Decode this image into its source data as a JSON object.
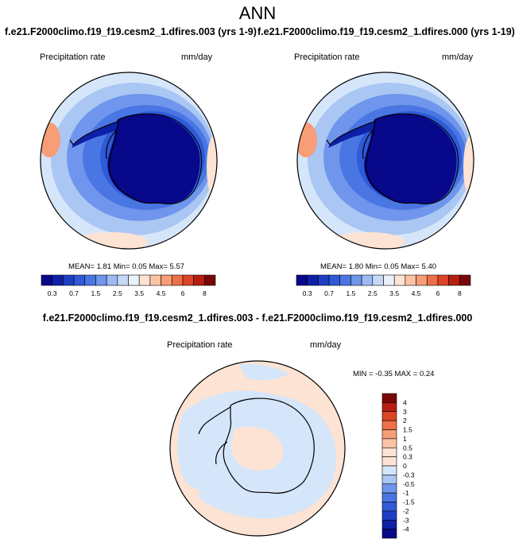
{
  "main_title": "ANN",
  "panels": {
    "left": {
      "case_title": "f.e21.F2000climo.f19_f19.cesm2_1.dfires.003 (yrs 1-9)",
      "variable": "Precipitation rate",
      "units": "mm/day",
      "stats_text": "MEAN=  1.81  Min=  0.05  Max=  5.57"
    },
    "right": {
      "case_title": "f.e21.F2000climo.f19_f19.cesm2_1.dfires.000 (yrs 1-19)",
      "variable": "Precipitation rate",
      "units": "mm/day",
      "stats_text": "MEAN=  1.80  Min=  0.05  Max=  5.40"
    },
    "diff": {
      "case_title": "f.e21.F2000climo.f19_f19.cesm2_1.dfires.003 - f.e21.F2000climo.f19_f19.cesm2_1.dfires.000",
      "variable": "Precipitation rate",
      "units": "mm/day",
      "stats_text": "MIN =  -0.35 MAX =   0.24"
    }
  },
  "chart_data": [
    {
      "type": "heatmap",
      "projection": "south polar stereographic",
      "title": "f.e21.F2000climo.f19_f19.cesm2_1.dfires.003 (yrs 1-9)",
      "variable": "Precipitation rate",
      "units": "mm/day",
      "mean": 1.81,
      "min": 0.05,
      "max": 5.57,
      "colorbar": {
        "orientation": "horizontal",
        "levels": [
          "0.3",
          "0.5",
          "0.7",
          "1",
          "1.5",
          "2",
          "2.5",
          "3",
          "3.5",
          "4",
          "4.5",
          "5",
          "6",
          "7",
          "8"
        ],
        "tick_labels": [
          "0.3",
          "0.7",
          "1.5",
          "2.5",
          "3.5",
          "4.5",
          "6",
          "8"
        ],
        "colors": [
          "#08088a",
          "#0e1fa8",
          "#1f3ec6",
          "#2f5ad8",
          "#4a76e3",
          "#6f96ec",
          "#9dbaf2",
          "#c7d9f7",
          "#eaf1fc",
          "#fde3d3",
          "#fbc3a4",
          "#f79d77",
          "#ef6f4b",
          "#dc4526",
          "#b51e10",
          "#7a0707"
        ]
      }
    },
    {
      "type": "heatmap",
      "projection": "south polar stereographic",
      "title": "f.e21.F2000climo.f19_f19.cesm2_1.dfires.000 (yrs 1-19)",
      "variable": "Precipitation rate",
      "units": "mm/day",
      "mean": 1.8,
      "min": 0.05,
      "max": 5.4,
      "colorbar": {
        "orientation": "horizontal",
        "levels": [
          "0.3",
          "0.5",
          "0.7",
          "1",
          "1.5",
          "2",
          "2.5",
          "3",
          "3.5",
          "4",
          "4.5",
          "5",
          "6",
          "7",
          "8"
        ],
        "tick_labels": [
          "0.3",
          "0.7",
          "1.5",
          "2.5",
          "3.5",
          "4.5",
          "6",
          "8"
        ],
        "colors": [
          "#08088a",
          "#0e1fa8",
          "#1f3ec6",
          "#2f5ad8",
          "#4a76e3",
          "#6f96ec",
          "#9dbaf2",
          "#c7d9f7",
          "#eaf1fc",
          "#fde3d3",
          "#fbc3a4",
          "#f79d77",
          "#ef6f4b",
          "#dc4526",
          "#b51e10",
          "#7a0707"
        ]
      }
    },
    {
      "type": "heatmap",
      "projection": "south polar stereographic",
      "title": "f.e21.F2000climo.f19_f19.cesm2_1.dfires.003 - f.e21.F2000climo.f19_f19.cesm2_1.dfires.000",
      "variable": "Precipitation rate",
      "units": "mm/day",
      "min": -0.35,
      "max": 0.24,
      "colorbar": {
        "orientation": "vertical",
        "levels": [
          "4",
          "3",
          "2",
          "1.5",
          "1",
          "0.5",
          "0.3",
          "0",
          "-0.3",
          "-0.5",
          "-1",
          "-1.5",
          "-2",
          "-3",
          "-4"
        ],
        "tick_labels": [
          "4",
          "3",
          "2",
          "1.5",
          "1",
          "0.5",
          "0.3",
          "0",
          "-0.3",
          "-0.5",
          "-1",
          "-1.5",
          "-2",
          "-3",
          "-4"
        ],
        "colors": [
          "#7a0707",
          "#b51e10",
          "#dc4526",
          "#ef6f4b",
          "#f79d77",
          "#fbc3a4",
          "#fde3d3",
          "#fde3d3",
          "#d6e6fa",
          "#aac6f3",
          "#6f96ec",
          "#4a76e3",
          "#2f5ad8",
          "#1f3ec6",
          "#0e1fa8",
          "#08088a"
        ]
      }
    }
  ]
}
